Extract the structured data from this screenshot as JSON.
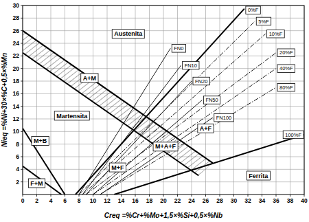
{
  "chart_data": {
    "type": "line",
    "x_label": "Creq =%Cr+%Mo+1,5×%Si+0,5×%Nb",
    "y_label": "Nieq =%Ni+30×%C+0,5×%Mn",
    "xlim": [
      0,
      40
    ],
    "ylim": [
      0,
      30
    ],
    "xticks": [
      0,
      2,
      4,
      6,
      8,
      10,
      12,
      14,
      16,
      18,
      20,
      22,
      24,
      26,
      28,
      30,
      32,
      34,
      36,
      38,
      40
    ],
    "yticks": [
      2,
      4,
      6,
      8,
      10,
      12,
      14,
      16,
      18,
      20,
      22,
      24,
      26,
      28,
      30
    ],
    "grid": true,
    "color": "#000000",
    "series": [
      {
        "x": [
          0,
          27
        ],
        "values": [
          26,
          5
        ],
        "line_style": "thick"
      },
      {
        "x": [
          0,
          25
        ],
        "values": [
          22.5,
          3
        ],
        "line_style": "thick"
      },
      {
        "x": [
          0,
          6
        ],
        "values": [
          10.5,
          0
        ],
        "line_style": "thick"
      },
      {
        "x": [
          0,
          5.5
        ],
        "values": [
          4.5,
          0
        ],
        "line_style": "thick"
      },
      {
        "name": "0%F",
        "x": [
          7.5,
          31.5
        ],
        "values": [
          0,
          29.5
        ],
        "line_style": "thick"
      },
      {
        "name": "5%F",
        "x": [
          8,
          33
        ],
        "values": [
          0,
          27.5
        ],
        "line_style": "dashdot"
      },
      {
        "name": "10%F",
        "x": [
          8.5,
          34.5
        ],
        "values": [
          0,
          25.5
        ],
        "line_style": "dashdot"
      },
      {
        "name": "20%F",
        "x": [
          9,
          36
        ],
        "values": [
          0,
          22.5
        ],
        "line_style": "dashdot"
      },
      {
        "name": "40%F",
        "x": [
          10,
          36
        ],
        "values": [
          0,
          20
        ],
        "line_style": "dashdot"
      },
      {
        "name": "80%F",
        "x": [
          11,
          36
        ],
        "values": [
          0,
          17
        ],
        "line_style": "dashdot"
      },
      {
        "name": "100%F",
        "x": [
          13,
          40
        ],
        "values": [
          0,
          9.5
        ],
        "line_style": "thick"
      },
      {
        "name": "FN0",
        "x": [
          8,
          21
        ],
        "values": [
          0,
          23.2
        ],
        "line_style": "thin"
      },
      {
        "name": "FN10",
        "x": [
          8.5,
          22.5
        ],
        "values": [
          0,
          20.5
        ],
        "line_style": "thin"
      },
      {
        "name": "FN20",
        "x": [
          9,
          24
        ],
        "values": [
          0,
          18
        ],
        "line_style": "thin"
      },
      {
        "name": "FN50",
        "x": [
          10,
          25.5
        ],
        "values": [
          0,
          15
        ],
        "line_style": "thin"
      },
      {
        "name": "FN100",
        "x": [
          11,
          27
        ],
        "values": [
          0,
          12.2
        ],
        "line_style": "thin"
      }
    ],
    "annotations": [
      {
        "text": "Austenita",
        "x": 15,
        "y": 25.5
      },
      {
        "text": "A+M",
        "x": 9.5,
        "y": 18.5
      },
      {
        "text": "Martensita",
        "x": 7,
        "y": 12.5
      },
      {
        "text": "M+B",
        "x": 2.5,
        "y": 8.5
      },
      {
        "text": "F+M",
        "x": 2,
        "y": 1.8
      },
      {
        "text": "M+A+F",
        "x": 20.3,
        "y": 7.6
      },
      {
        "text": "M+F",
        "x": 13.5,
        "y": 4.3
      },
      {
        "text": "A+F",
        "x": 26,
        "y": 10.5
      },
      {
        "text": "Ferrita",
        "x": 33.5,
        "y": 3
      }
    ]
  }
}
